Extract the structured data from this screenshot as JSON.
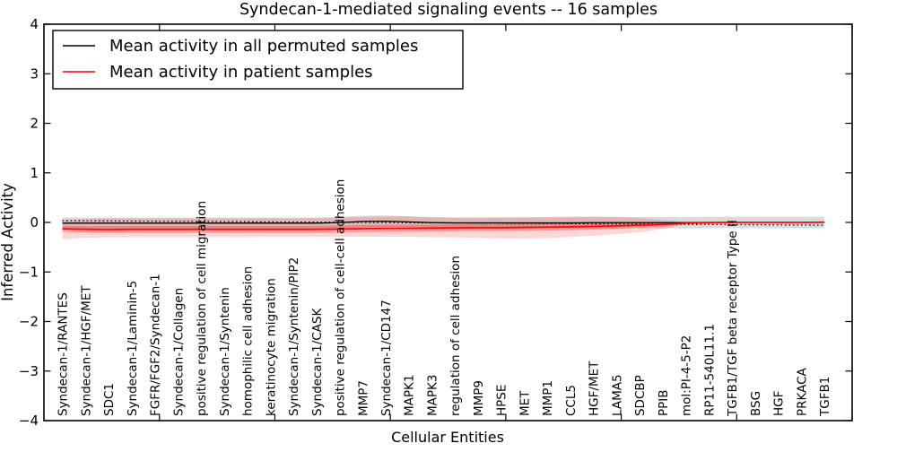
{
  "figure": {
    "background": "#ffffff",
    "axis_color": "#000000"
  },
  "chart_data": {
    "type": "line",
    "title": "Syndecan-1-mediated signaling events -- 16 samples",
    "xlabel": "Cellular Entities",
    "ylabel": "Inferred Activity",
    "ylim": [
      -4,
      4
    ],
    "yticks": [
      4,
      3,
      2,
      1,
      0,
      -1,
      -2,
      -3,
      -4
    ],
    "grid": false,
    "legend_position": "upper left",
    "samples_in_title": 16,
    "categories": [
      "Syndecan-1/RANTES",
      "Syndecan-1/HGF/MET",
      "SDC1",
      "Syndecan-1/Laminin-5",
      "FGFR/FGF2/Syndecan-1",
      "Syndecan-1/Collagen",
      "positive regulation of cell migration",
      "Syndecan-1/Syntenin",
      "homophilic cell adhesion",
      "keratinocyte migration",
      "Syndecan-1/Syntenin/PIP2",
      "Syndecan-1/CASK",
      "positive regulation of cell-cell adhesion",
      "MMP7",
      "Syndecan-1/CD147",
      "MAPK1",
      "MAPK3",
      "regulation of cell adhesion",
      "MMP9",
      "HPSE",
      "MET",
      "MMP1",
      "CCL5",
      "HGF/MET",
      "LAMA5",
      "SDCBP",
      "PPIB",
      "mol:PI-4-5-P2",
      "RP11-540L11.1",
      "TGFB1/TGF beta receptor Type II",
      "BSG",
      "HGF",
      "PRKACA",
      "TGFB1"
    ],
    "series": [
      {
        "name": "Mean activity in all permuted samples",
        "color": "#000000",
        "style": "solid",
        "values": [
          -0.015,
          -0.015,
          -0.015,
          -0.015,
          -0.015,
          -0.015,
          -0.015,
          -0.015,
          -0.015,
          -0.015,
          -0.015,
          -0.015,
          -0.005,
          0.02,
          0.025,
          0.01,
          -0.005,
          -0.01,
          -0.01,
          -0.01,
          -0.01,
          -0.01,
          -0.01,
          -0.005,
          -0.005,
          -0.005,
          -0.005,
          -0.005,
          0,
          0,
          0,
          0,
          0,
          0
        ]
      },
      {
        "name": "Mean activity in patient samples",
        "color": "#ff0000",
        "style": "solid",
        "values": [
          -0.13,
          -0.14,
          -0.145,
          -0.14,
          -0.14,
          -0.14,
          -0.14,
          -0.14,
          -0.14,
          -0.14,
          -0.14,
          -0.14,
          -0.135,
          -0.125,
          -0.12,
          -0.12,
          -0.115,
          -0.11,
          -0.105,
          -0.105,
          -0.1,
          -0.095,
          -0.09,
          -0.08,
          -0.07,
          -0.055,
          -0.04,
          -0.015,
          -0.005,
          0,
          0,
          0,
          0,
          0.005
        ]
      },
      {
        "name": "",
        "color": "#000000",
        "style": "dotted",
        "values": [
          0.035,
          0.032,
          0.03,
          0.027,
          0.024,
          0.021,
          0.019,
          0.016,
          0.013,
          0.01,
          0.008,
          0.005,
          0.002,
          0.0,
          -0.003,
          -0.006,
          -0.009,
          -0.011,
          -0.014,
          -0.017,
          -0.02,
          -0.022,
          -0.025,
          -0.028,
          -0.03,
          -0.033,
          -0.036,
          -0.039,
          -0.041,
          -0.044,
          -0.047,
          -0.05,
          -0.052,
          -0.055
        ]
      }
    ],
    "bands": [
      {
        "name": "permuted-samples-std-band",
        "color": "#000000",
        "opacity": 0.14,
        "upper": [
          0.1,
          0.1,
          0.1,
          0.1,
          0.1,
          0.1,
          0.1,
          0.1,
          0.1,
          0.1,
          0.1,
          0.1,
          0.11,
          0.135,
          0.14,
          0.125,
          0.11,
          0.105,
          0.105,
          0.105,
          0.105,
          0.105,
          0.105,
          0.11,
          0.11,
          0.11,
          0.11,
          0.11,
          0.115,
          0.115,
          0.115,
          0.115,
          0.115,
          0.115
        ],
        "lower": [
          -0.13,
          -0.13,
          -0.13,
          -0.13,
          -0.13,
          -0.13,
          -0.13,
          -0.13,
          -0.13,
          -0.13,
          -0.13,
          -0.13,
          -0.12,
          -0.095,
          -0.09,
          -0.105,
          -0.12,
          -0.125,
          -0.125,
          -0.125,
          -0.125,
          -0.125,
          -0.125,
          -0.12,
          -0.12,
          -0.12,
          -0.12,
          -0.12,
          -0.115,
          -0.115,
          -0.115,
          -0.115,
          -0.115,
          -0.115
        ]
      },
      {
        "name": "patient-samples-outer-band",
        "color": "#ff0000",
        "opacity": 0.16,
        "upper": [
          0.05,
          0.07,
          0.08,
          0.08,
          0.08,
          0.08,
          0.08,
          0.08,
          0.08,
          0.08,
          0.08,
          0.085,
          0.09,
          0.11,
          0.12,
          0.12,
          0.1,
          0.09,
          0.09,
          0.095,
          0.1,
          0.11,
          0.12,
          0.12,
          0.11,
          0.085,
          0.045,
          0.01,
          0.005,
          0.005,
          0.005,
          0.005,
          0.005,
          0.005
        ],
        "lower": [
          -0.34,
          -0.31,
          -0.3,
          -0.3,
          -0.3,
          -0.3,
          -0.3,
          -0.3,
          -0.3,
          -0.295,
          -0.295,
          -0.295,
          -0.295,
          -0.29,
          -0.29,
          -0.29,
          -0.3,
          -0.3,
          -0.31,
          -0.325,
          -0.33,
          -0.315,
          -0.295,
          -0.27,
          -0.24,
          -0.2,
          -0.13,
          -0.035,
          -0.02,
          -0.015,
          -0.015,
          -0.015,
          -0.015,
          -0.015
        ]
      },
      {
        "name": "patient-samples-inner-band",
        "color": "#ff0000",
        "opacity": 0.28,
        "upper": [
          -0.07,
          -0.075,
          -0.075,
          -0.07,
          -0.07,
          -0.07,
          -0.07,
          -0.07,
          -0.07,
          -0.07,
          -0.07,
          -0.07,
          -0.065,
          -0.055,
          -0.05,
          -0.05,
          -0.045,
          -0.04,
          -0.035,
          -0.035,
          -0.03,
          -0.025,
          -0.022,
          -0.015,
          -0.01,
          -0.005,
          0.0,
          -0.003,
          0.003,
          0.006,
          0.006,
          0.006,
          0.006,
          0.011
        ],
        "lower": [
          -0.19,
          -0.205,
          -0.215,
          -0.21,
          -0.21,
          -0.21,
          -0.21,
          -0.21,
          -0.21,
          -0.21,
          -0.21,
          -0.21,
          -0.205,
          -0.195,
          -0.19,
          -0.19,
          -0.185,
          -0.18,
          -0.175,
          -0.175,
          -0.17,
          -0.165,
          -0.158,
          -0.145,
          -0.13,
          -0.105,
          -0.08,
          -0.027,
          -0.013,
          -0.006,
          -0.006,
          -0.006,
          -0.006,
          -0.001
        ]
      }
    ],
    "x_major_tick_units": [
      5,
      10,
      15,
      20,
      25,
      30,
      35
    ]
  }
}
